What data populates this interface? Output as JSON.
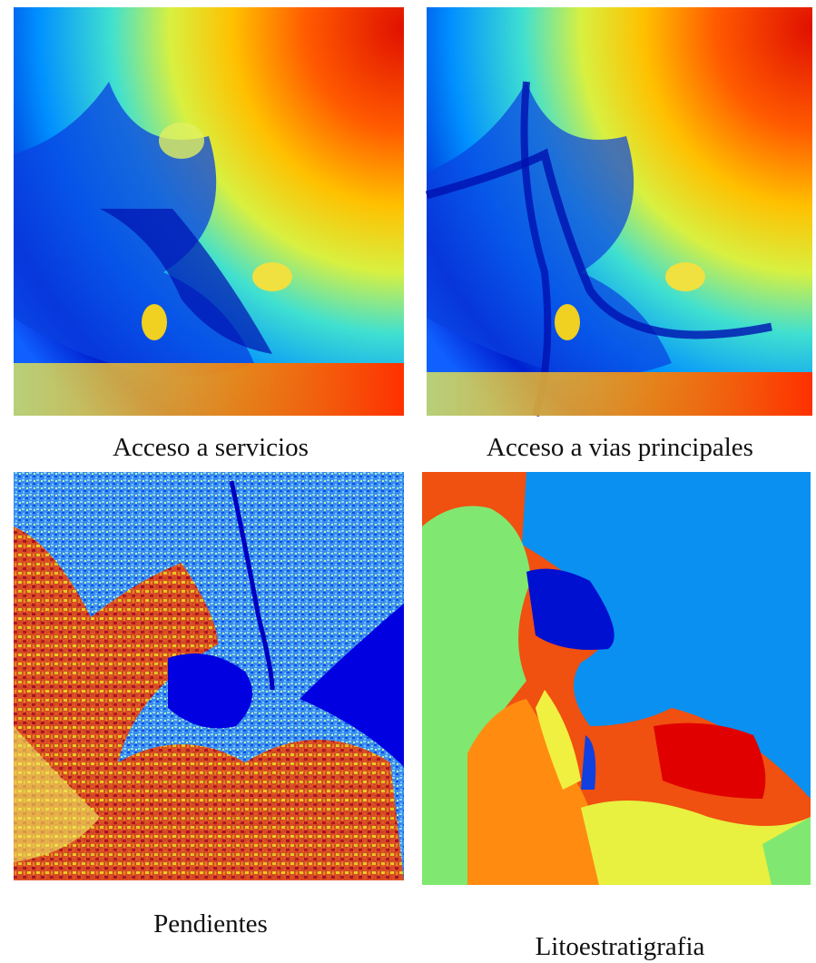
{
  "panels": [
    {
      "caption": "Acceso a servicios"
    },
    {
      "caption": "Acceso a vias principales"
    },
    {
      "caption": "Pendientes"
    },
    {
      "caption": "Litoestratigrafia"
    }
  ]
}
